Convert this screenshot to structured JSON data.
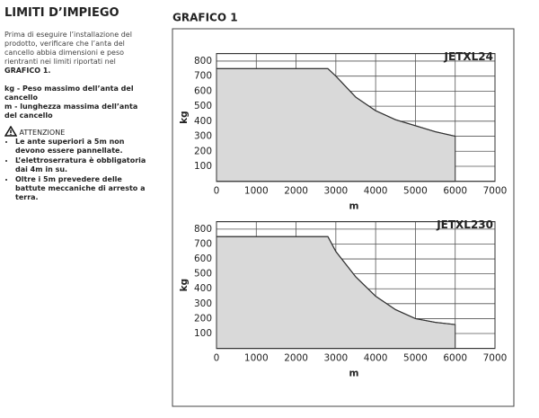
{
  "title": "LIMITI D’IMPIEGO",
  "intro": "Prima di eseguire l’installazione del prodotto, verificare che l’anta del cancello abbia dimensioni e peso rientranti nei limiti riportati nel",
  "intro_ref": "GRAFICO 1.",
  "legend": [
    "kg -  Peso massimo dell’anta del cancello",
    "m -  lunghezza massima dell’anta del cancello"
  ],
  "warning": {
    "title": "ATTENZIONE",
    "items": [
      "Le ante superiori a 5m non devono essere pannellate.",
      "L’elettroserratura è obbligatoria dai 4m in su.",
      "Oltre i 5m prevedere delle battute meccaniche di arresto a terra."
    ]
  },
  "figure_title": "GRAFICO 1",
  "chart_data": [
    {
      "type": "area",
      "title": "JETXL24",
      "xlabel": "m",
      "ylabel": "kg",
      "x": [
        0,
        2800,
        3000,
        3500,
        4000,
        4500,
        5000,
        5500,
        6000
      ],
      "values": [
        750,
        750,
        700,
        560,
        470,
        410,
        370,
        330,
        300
      ],
      "color": "#d9d9d9",
      "line_color": "#333333",
      "xlim": [
        0,
        7000
      ],
      "xticks": [
        0,
        1000,
        2000,
        3000,
        4000,
        5000,
        6000,
        7000
      ],
      "ylim": [
        0,
        850
      ],
      "yticks": [
        100,
        200,
        300,
        400,
        500,
        600,
        700,
        800
      ],
      "grid": true
    },
    {
      "type": "area",
      "title": "JETXL230",
      "xlabel": "m",
      "ylabel": "kg",
      "x": [
        0,
        2800,
        3000,
        3500,
        4000,
        4500,
        5000,
        5500,
        6000
      ],
      "values": [
        750,
        750,
        650,
        480,
        350,
        260,
        200,
        175,
        160
      ],
      "color": "#d9d9d9",
      "line_color": "#333333",
      "xlim": [
        0,
        7000
      ],
      "xticks": [
        0,
        1000,
        2000,
        3000,
        4000,
        5000,
        6000,
        7000
      ],
      "ylim": [
        0,
        850
      ],
      "yticks": [
        100,
        200,
        300,
        400,
        500,
        600,
        700,
        800
      ],
      "grid": true
    }
  ]
}
